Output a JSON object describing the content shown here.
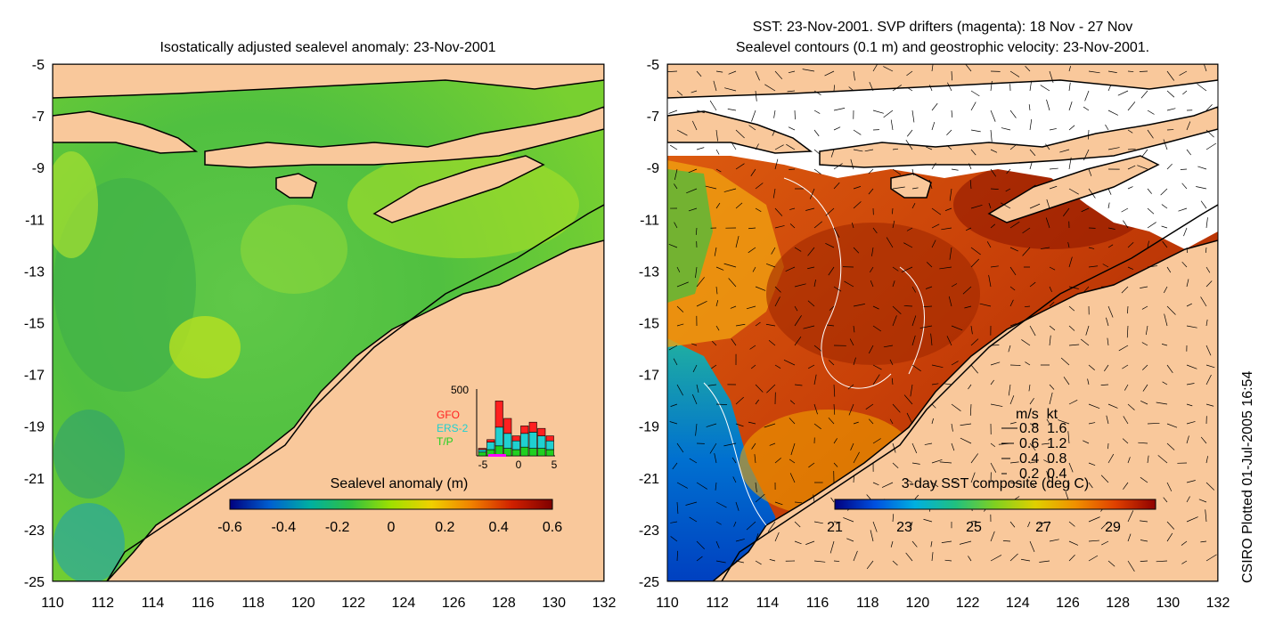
{
  "left_panel": {
    "title": "Isostatically adjusted sealevel anomaly: 23-Nov-2001",
    "colorbar": {
      "label": "Sealevel anomaly (m)",
      "ticks": [
        "-0.6",
        "-0.4",
        "-0.2",
        "0",
        "0.2",
        "0.4",
        "0.6"
      ],
      "stops": [
        "#00007f",
        "#0060d0",
        "#00b0a0",
        "#30c040",
        "#a0e000",
        "#f0d000",
        "#f08000",
        "#d02000",
        "#7f0000"
      ]
    },
    "histogram": {
      "ymax_label": "500",
      "x_ticks": [
        "-5",
        "0",
        "5"
      ],
      "legend": [
        {
          "name": "GFO",
          "color": "#ff2020"
        },
        {
          "name": "ERS-2",
          "color": "#20d0d0"
        },
        {
          "name": "T/P",
          "color": "#20d020"
        }
      ],
      "bars": [
        {
          "tp": 30,
          "ers": 20,
          "gfo": 10
        },
        {
          "tp": 50,
          "ers": 60,
          "gfo": 20
        },
        {
          "tp": 80,
          "ers": 150,
          "gfo": 210
        },
        {
          "tp": 60,
          "ers": 120,
          "gfo": 120
        },
        {
          "tp": 50,
          "ers": 70,
          "gfo": 40
        },
        {
          "tp": 70,
          "ers": 110,
          "gfo": 60
        },
        {
          "tp": 60,
          "ers": 130,
          "gfo": 80
        },
        {
          "tp": 60,
          "ers": 100,
          "gfo": 60
        },
        {
          "tp": 50,
          "ers": 70,
          "gfo": 40
        }
      ]
    }
  },
  "right_panel": {
    "title_line1": "SST: 23-Nov-2001. SVP drifters (magenta): 18 Nov - 27 Nov",
    "title_line2": "Sealevel contours (0.1 m) and geostrophic velocity: 23-Nov-2001.",
    "colorbar": {
      "label": "3-day SST composite (deg C)",
      "ticks": [
        "21",
        "23",
        "25",
        "27",
        "29"
      ],
      "stops": [
        "#00007f",
        "#0050e0",
        "#00b0e0",
        "#20c080",
        "#80d020",
        "#e0d000",
        "#f09000",
        "#e04000",
        "#8f0000"
      ]
    },
    "velocity_key": {
      "header": "m/s  kt",
      "rows": [
        "0.8  1.6",
        "0.6  1.2",
        "0.4  0.8",
        "0.2  0.4"
      ]
    }
  },
  "axes": {
    "lat_labels": [
      "-5",
      "-7",
      "-9",
      "-11",
      "-13",
      "-15",
      "-17",
      "-19",
      "-21",
      "-23",
      "-25"
    ],
    "lon_labels": [
      "110",
      "112",
      "114",
      "116",
      "118",
      "120",
      "122",
      "124",
      "126",
      "128",
      "130",
      "132"
    ]
  },
  "land_color": "#f9c89b",
  "credit": "CSIRO Plotted 01-Jul-2005 16:54"
}
